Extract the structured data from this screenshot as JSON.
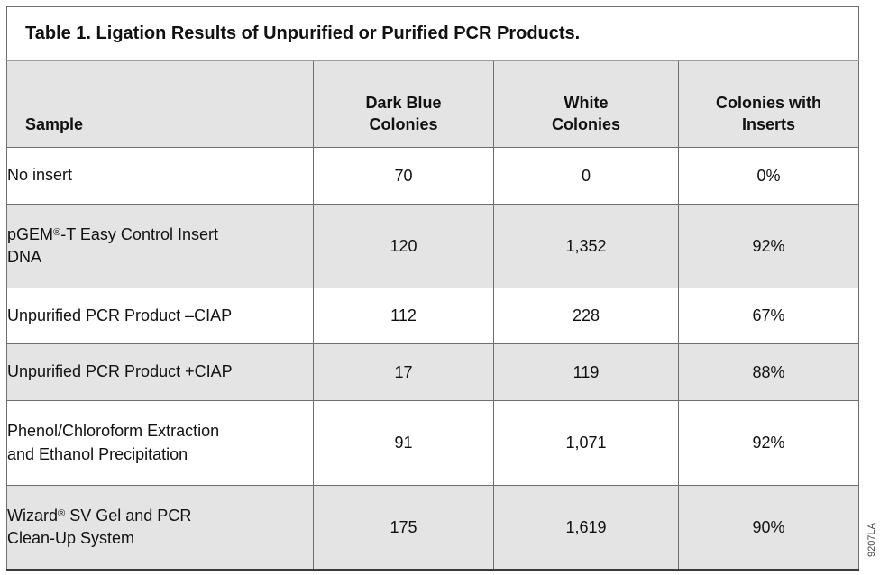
{
  "title": "Table 1. Ligation Results of Unpurified or Purified PCR Products.",
  "part_number": "9207LA",
  "colors": {
    "row_shade": "#e4e4e4",
    "border_gray": "#6e6e6e",
    "text": "#111111"
  },
  "table": {
    "columns": {
      "sample": "Sample",
      "dark_blue": "Dark Blue\nColonies",
      "white": "White\nColonies",
      "inserts": "Colonies with\nInserts"
    },
    "rows": [
      {
        "sample": "No insert",
        "dark_blue": "70",
        "white": "0",
        "inserts": "0%"
      },
      {
        "sample": "pGEM®-T Easy Control Insert\nDNA",
        "dark_blue": "120",
        "white": "1,352",
        "inserts": "92%"
      },
      {
        "sample": "Unpurified PCR Product –CIAP",
        "dark_blue": "112",
        "white": "228",
        "inserts": "67%"
      },
      {
        "sample": "Unpurified PCR Product +CIAP",
        "dark_blue": "17",
        "white": "119",
        "inserts": "88%"
      },
      {
        "sample": "Phenol/Chloroform Extraction\nand Ethanol Precipitation",
        "dark_blue": "91",
        "white": "1,071",
        "inserts": "92%"
      },
      {
        "sample": "Wizard® SV Gel and PCR\nClean-Up System",
        "dark_blue": "175",
        "white": "1,619",
        "inserts": "90%"
      }
    ]
  }
}
